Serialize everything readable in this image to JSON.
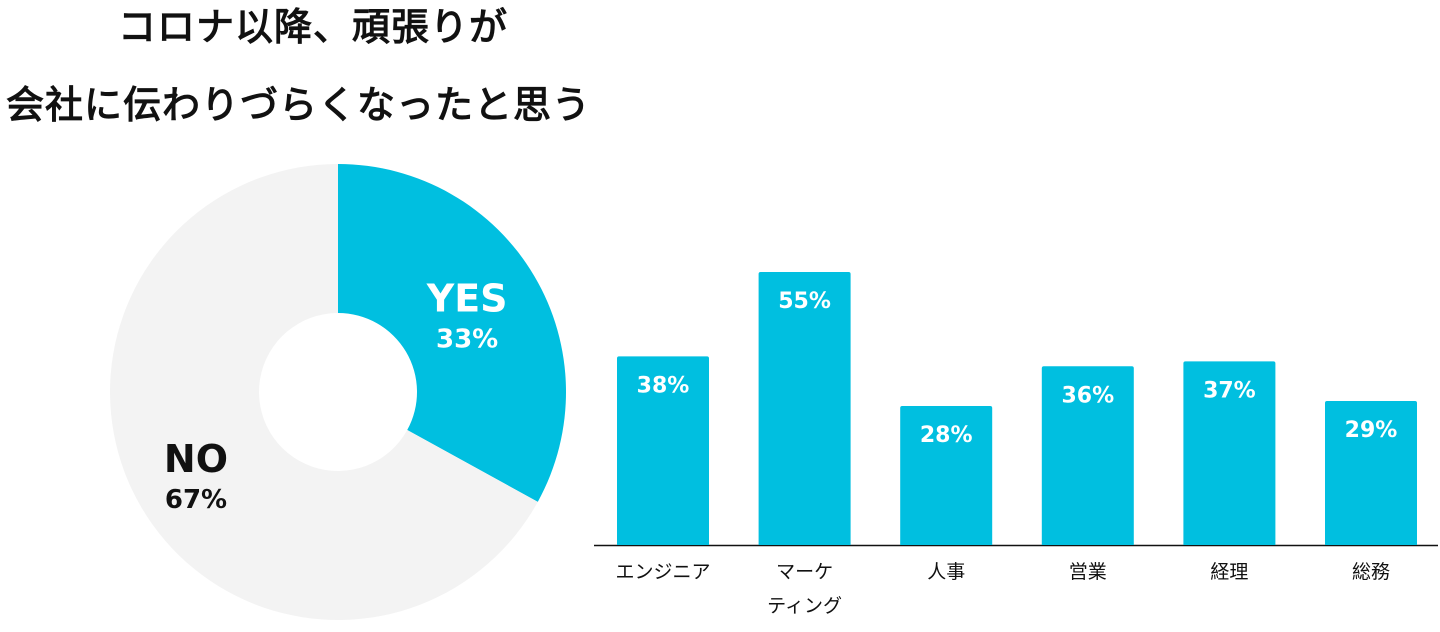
{
  "title": {
    "line1": "コロナ以降、頑張りが",
    "line2": "会社に伝わりづらくなったと思う"
  },
  "colors": {
    "accent": "#00BFE0",
    "neutral": "#F3F3F3",
    "background": "#FFFFFF",
    "text": "#111111",
    "on_accent": "#FFFFFF"
  },
  "chart_data": [
    {
      "type": "pie",
      "donut": true,
      "slices": [
        {
          "label": "YES",
          "value": 33,
          "value_label": "33%",
          "color": "#00BFE0"
        },
        {
          "label": "NO",
          "value": 67,
          "value_label": "67%",
          "color": "#F3F3F3"
        }
      ]
    },
    {
      "type": "bar",
      "categories": [
        [
          "エンジニア"
        ],
        [
          "マーケ",
          "ティング"
        ],
        [
          "人事"
        ],
        [
          "営業"
        ],
        [
          "経理"
        ],
        [
          "総務"
        ]
      ],
      "values": [
        38,
        55,
        28,
        36,
        37,
        29
      ],
      "value_labels": [
        "38%",
        "55%",
        "28%",
        "36%",
        "37%",
        "29%"
      ],
      "ylim": [
        0,
        55
      ],
      "grid": false,
      "bar_color": "#00BFE0"
    }
  ]
}
